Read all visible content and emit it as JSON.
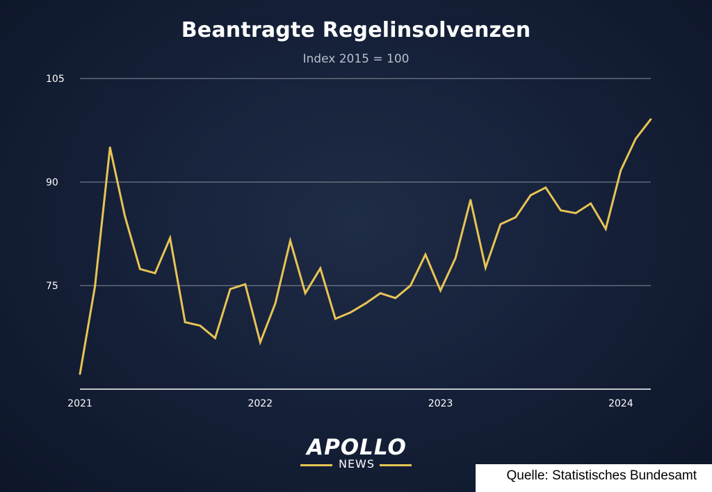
{
  "title": "Beantragte Regelinsolvenzen",
  "subtitle": "Index 2015 = 100",
  "source": "Quelle: Statistisches Bundesamt",
  "logo": {
    "main": "APOLLO",
    "sub": "NEWS"
  },
  "colors": {
    "line": "#e8c455",
    "background": "#16213a",
    "grid": "#aeb4be",
    "text": "#ffffff"
  },
  "chart_data": {
    "type": "line",
    "title": "Beantragte Regelinsolvenzen",
    "subtitle": "Index 2015 = 100",
    "xlabel": "",
    "ylabel": "",
    "x_ticks": [
      "2021",
      "2022",
      "2023",
      "2024"
    ],
    "y_ticks": [
      75,
      90,
      105
    ],
    "ylim": [
      60,
      105
    ],
    "x_start": "2021-01",
    "x_end": "2024-03",
    "grid": "horizontal",
    "series": [
      {
        "values": [
          62.2,
          74.9,
          95.0,
          85.0,
          77.4,
          76.8,
          81.9,
          69.7,
          69.2,
          67.4,
          74.5,
          75.2,
          66.8,
          72.4,
          81.5,
          73.9,
          77.5,
          70.2,
          71.1,
          72.4,
          73.9,
          73.2,
          75.0,
          79.5,
          74.3,
          79.0,
          87.4,
          77.6,
          83.9,
          84.9,
          88.1,
          89.2,
          85.9,
          85.5,
          86.9,
          83.2,
          91.7,
          96.3,
          99.1
        ]
      }
    ]
  }
}
